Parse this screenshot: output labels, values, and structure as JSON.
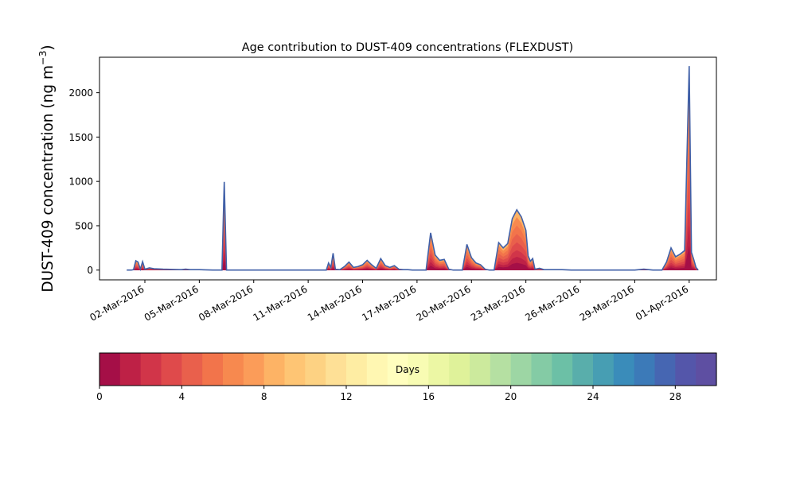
{
  "chart_data": {
    "type": "area",
    "title": "Age contribution to DUST-409 concentrations (FLEXDUST)",
    "ylabel_main": "DUST-409 concentration (ng m",
    "ylabel_sup": "−3",
    "ylabel_close": ")",
    "xlabel": "",
    "ylim": [
      -110,
      2400
    ],
    "xlim": [
      "2016-02-28T12:00",
      "2016-04-02T12:00"
    ],
    "yticks": [
      0,
      500,
      1000,
      1500,
      2000
    ],
    "xticks": [
      "02-Mar-2016",
      "05-Mar-2016",
      "08-Mar-2016",
      "11-Mar-2016",
      "14-Mar-2016",
      "17-Mar-2016",
      "20-Mar-2016",
      "23-Mar-2016",
      "26-Mar-2016",
      "29-Mar-2016",
      "01-Apr-2016"
    ],
    "grid": false,
    "stacked": true,
    "total_series": {
      "name": "",
      "x": [
        "2016-03-01T00:00",
        "2016-03-01T06:00",
        "2016-03-01T09:00",
        "2016-03-01T12:00",
        "2016-03-01T15:00",
        "2016-03-01T18:00",
        "2016-03-01T21:00",
        "2016-03-02T00:00",
        "2016-03-02T06:00",
        "2016-03-02T12:00",
        "2016-03-03T00:00",
        "2016-03-04T00:00",
        "2016-03-04T06:00",
        "2016-03-04T12:00",
        "2016-03-05T00:00",
        "2016-03-05T18:00",
        "2016-03-06T00:00",
        "2016-03-06T03:00",
        "2016-03-06T06:00",
        "2016-03-06T09:00",
        "2016-03-06T12:00",
        "2016-03-07T00:00",
        "2016-03-10T00:00",
        "2016-03-11T00:00",
        "2016-03-11T21:00",
        "2016-03-12T00:00",
        "2016-03-12T03:00",
        "2016-03-12T06:00",
        "2016-03-12T09:00",
        "2016-03-12T12:00",
        "2016-03-12T18:00",
        "2016-03-13T00:00",
        "2016-03-13T06:00",
        "2016-03-13T12:00",
        "2016-03-13T18:00",
        "2016-03-14T00:00",
        "2016-03-14T06:00",
        "2016-03-14T12:00",
        "2016-03-14T18:00",
        "2016-03-15T00:00",
        "2016-03-15T06:00",
        "2016-03-15T12:00",
        "2016-03-15T18:00",
        "2016-03-16T00:00",
        "2016-03-16T06:00",
        "2016-03-16T12:00",
        "2016-03-16T18:00",
        "2016-03-17T00:00",
        "2016-03-17T06:00",
        "2016-03-17T12:00",
        "2016-03-17T18:00",
        "2016-03-18T00:00",
        "2016-03-18T06:00",
        "2016-03-18T12:00",
        "2016-03-18T18:00",
        "2016-03-19T00:00",
        "2016-03-19T06:00",
        "2016-03-19T12:00",
        "2016-03-19T18:00",
        "2016-03-20T00:00",
        "2016-03-20T06:00",
        "2016-03-20T12:00",
        "2016-03-20T18:00",
        "2016-03-21T00:00",
        "2016-03-21T06:00",
        "2016-03-21T12:00",
        "2016-03-21T18:00",
        "2016-03-22T00:00",
        "2016-03-22T06:00",
        "2016-03-22T12:00",
        "2016-03-22T18:00",
        "2016-03-23T00:00",
        "2016-03-23T03:00",
        "2016-03-23T06:00",
        "2016-03-23T09:00",
        "2016-03-23T12:00",
        "2016-03-23T18:00",
        "2016-03-24T00:00",
        "2016-03-24T06:00",
        "2016-03-24T12:00",
        "2016-03-24T18:00",
        "2016-03-25T00:00",
        "2016-03-25T12:00",
        "2016-03-26T00:00",
        "2016-03-27T00:00",
        "2016-03-28T00:00",
        "2016-03-29T00:00",
        "2016-03-29T12:00",
        "2016-03-30T00:00",
        "2016-03-30T12:00",
        "2016-03-30T18:00",
        "2016-03-31T00:00",
        "2016-03-31T06:00",
        "2016-03-31T12:00",
        "2016-03-31T18:00",
        "2016-04-01T00:00",
        "2016-04-01T03:00",
        "2016-04-01T06:00",
        "2016-04-01T09:00",
        "2016-04-01T12:00"
      ],
      "values": [
        0,
        0,
        5,
        105,
        90,
        10,
        95,
        10,
        25,
        15,
        10,
        5,
        10,
        5,
        5,
        0,
        0,
        0,
        0,
        995,
        0,
        0,
        0,
        0,
        0,
        0,
        80,
        30,
        190,
        10,
        5,
        40,
        90,
        30,
        40,
        60,
        110,
        60,
        20,
        130,
        50,
        30,
        50,
        10,
        5,
        5,
        0,
        0,
        0,
        0,
        420,
        170,
        110,
        120,
        10,
        0,
        0,
        0,
        290,
        140,
        80,
        60,
        10,
        0,
        0,
        310,
        250,
        300,
        580,
        680,
        600,
        450,
        160,
        100,
        130,
        10,
        20,
        5,
        5,
        5,
        5,
        5,
        0,
        0,
        0,
        0,
        0,
        10,
        0,
        0,
        90,
        250,
        150,
        180,
        220,
        2300,
        200,
        120,
        30,
        0
      ]
    },
    "colorbar": {
      "label": "Days",
      "range": [
        0,
        30
      ],
      "ticks": [
        0,
        4,
        8,
        12,
        16,
        20,
        24,
        28
      ],
      "colors": [
        "#a50f47",
        "#be2146",
        "#d13549",
        "#df4a4b",
        "#e9604c",
        "#f2744b",
        "#f7894f",
        "#fb9c59",
        "#fdb365",
        "#fec574",
        "#fdd283",
        "#fee096",
        "#feeda3",
        "#fff7b2",
        "#fffebe",
        "#f8fcb3",
        "#ecf7a4",
        "#dff29a",
        "#ccea9d",
        "#b5e0a2",
        "#9dd6a4",
        "#84cba5",
        "#6cc0a6",
        "#59aeab",
        "#479eb3",
        "#3a8cba",
        "#3c7ab8",
        "#4666b2",
        "#5456aa",
        "#5e4fa2"
      ]
    },
    "line_color": "#4060a8"
  }
}
